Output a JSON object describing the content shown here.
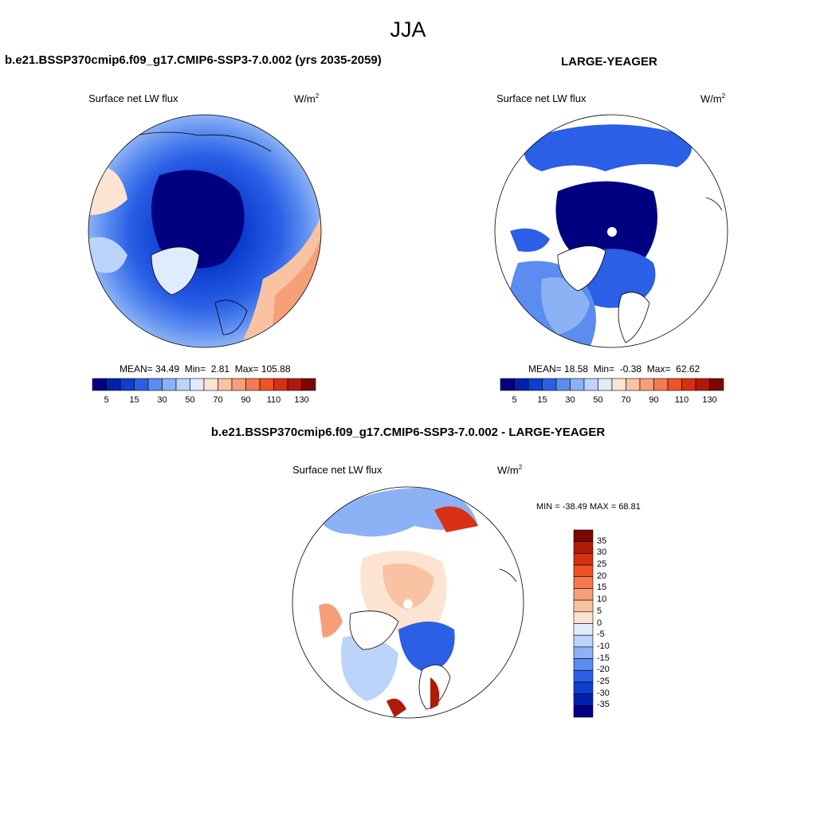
{
  "season": "JJA",
  "panels": {
    "left": {
      "title": "b.e21.BSSP370cmip6.f09_g17.CMIP6-SSP3-7.0.002 (yrs 2035-2059)",
      "variable": "Surface net LW flux",
      "units_base": "W/m",
      "units_exp": "2",
      "stats": {
        "mean_label": "MEAN=",
        "mean": "34.49",
        "min_label": "Min=",
        "min": "2.81",
        "max_label": "Max=",
        "max": "105.88"
      }
    },
    "right": {
      "title": "LARGE-YEAGER",
      "variable": "Surface net LW flux",
      "units_base": "W/m",
      "units_exp": "2",
      "stats": {
        "mean_label": "MEAN=",
        "mean": "18.58",
        "min_label": "Min=",
        "min": "-0.38",
        "max_label": "Max=",
        "max": "62.62"
      }
    },
    "diff": {
      "title": "b.e21.BSSP370cmip6.f09_g17.CMIP6-SSP3-7.0.002 - LARGE-YEAGER",
      "variable": "Surface net LW flux",
      "units_base": "W/m",
      "units_exp": "2",
      "minmax": "MIN = -38.49 MAX =  68.81"
    }
  },
  "colorbar_abs": {
    "ticks": [
      "5",
      "15",
      "30",
      "50",
      "70",
      "90",
      "110",
      "130"
    ],
    "colors": [
      "#000080",
      "#0020b0",
      "#0d3fd0",
      "#2a5fe6",
      "#5b8cf0",
      "#8cb2f5",
      "#bcd4fa",
      "#e0ecfc",
      "#fde4d2",
      "#f9c3a3",
      "#f6a07a",
      "#f37a50",
      "#ee5225",
      "#d83012",
      "#b01a08",
      "#7a0800"
    ]
  },
  "colorbar_diff": {
    "ticks": [
      "35",
      "30",
      "25",
      "20",
      "15",
      "10",
      "5",
      "0",
      "-5",
      "-10",
      "-15",
      "-20",
      "-25",
      "-30",
      "-35"
    ],
    "colors": [
      "#7a0800",
      "#b01a08",
      "#d83012",
      "#ee5225",
      "#f37a50",
      "#f6a07a",
      "#f9c3a3",
      "#fde4d2",
      "#e0ecfc",
      "#bcd4fa",
      "#8cb2f5",
      "#5b8cf0",
      "#2a5fe6",
      "#0d3fd0",
      "#0020b0",
      "#000080"
    ]
  },
  "chart_data": [
    {
      "type": "heatmap",
      "projection": "north polar stereographic",
      "title": "b.e21.BSSP370cmip6.f09_g17.CMIP6-SSP3-7.0.002 (yrs 2035-2059)",
      "variable": "Surface net LW flux",
      "units": "W/m2",
      "mean": 34.49,
      "min": 2.81,
      "max": 105.88,
      "levels": [
        5,
        10,
        15,
        20,
        30,
        40,
        50,
        60,
        70,
        80,
        90,
        100,
        110,
        120,
        130
      ]
    },
    {
      "type": "heatmap",
      "projection": "north polar stereographic",
      "title": "LARGE-YEAGER",
      "variable": "Surface net LW flux",
      "units": "W/m2",
      "mean": 18.58,
      "min": -0.38,
      "max": 62.62,
      "levels": [
        5,
        10,
        15,
        20,
        30,
        40,
        50,
        60,
        70,
        80,
        90,
        100,
        110,
        120,
        130
      ]
    },
    {
      "type": "heatmap",
      "projection": "north polar stereographic",
      "title": "b.e21.BSSP370cmip6.f09_g17.CMIP6-SSP3-7.0.002 - LARGE-YEAGER",
      "variable": "Surface net LW flux",
      "units": "W/m2",
      "min": -38.49,
      "max": 68.81,
      "levels": [
        -35,
        -30,
        -25,
        -20,
        -15,
        -10,
        -5,
        0,
        5,
        10,
        15,
        20,
        25,
        30,
        35
      ]
    }
  ]
}
